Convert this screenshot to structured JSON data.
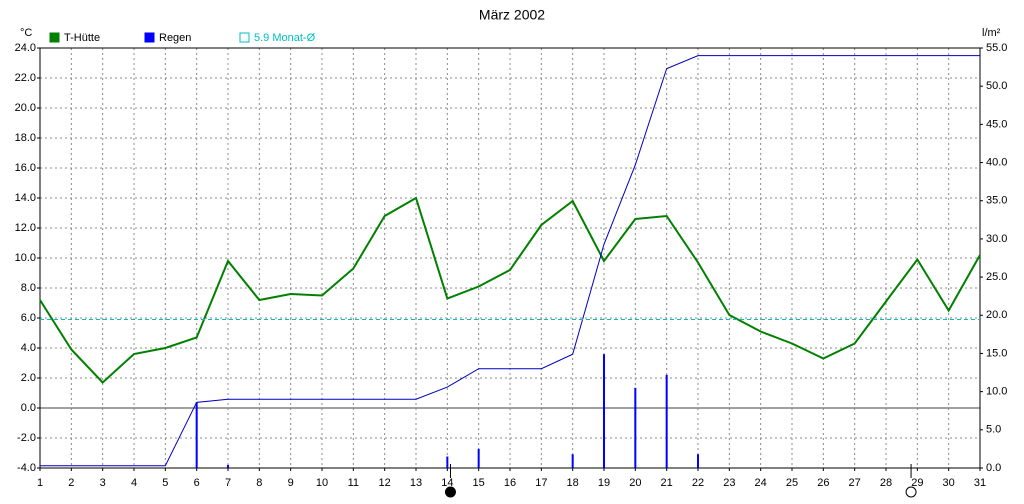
{
  "chart_data": {
    "type": "line",
    "title": "März 2002",
    "y_label": "°C",
    "y2_label": "l/m²",
    "x": [
      1,
      2,
      3,
      4,
      5,
      6,
      7,
      8,
      9,
      10,
      11,
      12,
      13,
      14,
      15,
      16,
      17,
      18,
      19,
      20,
      21,
      22,
      23,
      24,
      25,
      26,
      27,
      28,
      29,
      30,
      31
    ],
    "xlim": [
      1,
      31
    ],
    "xticks": [
      1,
      2,
      3,
      4,
      5,
      6,
      7,
      8,
      9,
      10,
      11,
      12,
      13,
      14,
      15,
      16,
      17,
      18,
      19,
      20,
      21,
      22,
      23,
      24,
      25,
      26,
      27,
      28,
      29,
      30,
      31
    ],
    "ylim": [
      -4,
      24
    ],
    "yticks": [
      {
        "value": -4,
        "label": "-4.0"
      },
      {
        "value": -2,
        "label": "-2.0"
      },
      {
        "value": 0,
        "label": "0.0"
      },
      {
        "value": 2,
        "label": "2.0"
      },
      {
        "value": 4,
        "label": "4.0"
      },
      {
        "value": 6,
        "label": "6.0"
      },
      {
        "value": 8,
        "label": "8.0"
      },
      {
        "value": 10,
        "label": "10.0"
      },
      {
        "value": 12,
        "label": "12.0"
      },
      {
        "value": 14,
        "label": "14.0"
      },
      {
        "value": 16,
        "label": "16.0"
      },
      {
        "value": 18,
        "label": "18.0"
      },
      {
        "value": 20,
        "label": "20.0"
      },
      {
        "value": 22,
        "label": "22.0"
      },
      {
        "value": 24,
        "label": "24.0"
      }
    ],
    "y2lim": [
      0,
      55
    ],
    "y2ticks": [
      {
        "value": 0,
        "label": "0.0"
      },
      {
        "value": 5,
        "label": "5.0"
      },
      {
        "value": 10,
        "label": "10.0"
      },
      {
        "value": 15,
        "label": "15.0"
      },
      {
        "value": 20,
        "label": "20.0"
      },
      {
        "value": 25,
        "label": "25.0"
      },
      {
        "value": 30,
        "label": "30.0"
      },
      {
        "value": 35,
        "label": "35.0"
      },
      {
        "value": 40,
        "label": "40.0"
      },
      {
        "value": 45,
        "label": "45.0"
      },
      {
        "value": 50,
        "label": "50.0"
      },
      {
        "value": 55,
        "label": "55.0"
      }
    ],
    "grid": true,
    "series": [
      {
        "name": "T-Hütte",
        "color": "#008000",
        "kind": "line",
        "axis": "y",
        "values": [
          7.2,
          3.9,
          1.7,
          3.6,
          4.0,
          4.7,
          9.8,
          7.2,
          7.6,
          7.5,
          9.3,
          12.8,
          14.0,
          7.3,
          8.1,
          9.2,
          12.2,
          13.8,
          9.8,
          12.6,
          12.8,
          9.7,
          6.2,
          5.1,
          4.3,
          3.3,
          4.3,
          7.1,
          9.9,
          6.5,
          10.2
        ]
      },
      {
        "name": "Regen",
        "color": "#0000ff",
        "kind": "bar",
        "axis": "y2",
        "values": [
          0,
          0,
          0,
          0,
          0,
          8.6,
          0.4,
          0,
          0,
          0,
          0,
          0,
          0,
          1.5,
          2.5,
          0,
          0,
          1.8,
          14.9,
          10.5,
          12.2,
          1.8,
          0,
          0,
          0,
          0,
          0,
          0,
          0,
          0,
          0
        ]
      },
      {
        "color": "#0000c0",
        "kind": "line",
        "axis": "y2",
        "values": [
          0.3,
          0.3,
          0.3,
          0.3,
          0.3,
          8.6,
          9.0,
          9.0,
          9.0,
          9.0,
          9.0,
          9.0,
          9.0,
          10.6,
          13.0,
          13.0,
          13.0,
          14.9,
          29.3,
          39.7,
          52.3,
          54.0,
          54.0,
          54.0,
          54.0,
          54.0,
          54.0,
          54.0,
          54.0,
          54.0,
          54.0
        ]
      },
      {
        "name": "5.9 Monat-Ø",
        "color": "#00c0c0",
        "kind": "hline",
        "axis": "y",
        "value": 5.9
      }
    ],
    "moon_x": [
      14.1,
      28.8
    ],
    "moon_fill": [
      "#000000",
      "none"
    ]
  }
}
